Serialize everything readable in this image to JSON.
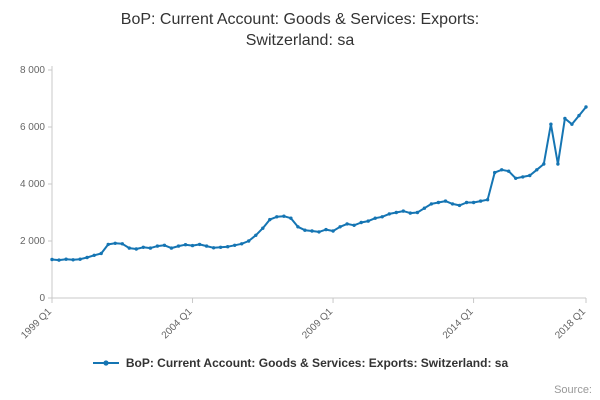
{
  "page": {
    "title_line1": "BoP: Current Account: Goods & Services: Exports:",
    "title_line2": "Switzerland: sa",
    "source_label": "Source:"
  },
  "chart_data": {
    "type": "line",
    "title": "BoP: Current Account: Goods & Services: Exports: Switzerland: sa",
    "series": [
      {
        "name": "BoP: Current Account: Goods & Services: Exports: Switzerland: sa",
        "values": [
          1350,
          1330,
          1360,
          1340,
          1360,
          1420,
          1500,
          1560,
          1880,
          1920,
          1900,
          1750,
          1720,
          1780,
          1750,
          1820,
          1850,
          1750,
          1820,
          1870,
          1840,
          1880,
          1820,
          1760,
          1780,
          1800,
          1850,
          1900,
          2000,
          2200,
          2450,
          2750,
          2850,
          2870,
          2800,
          2500,
          2380,
          2350,
          2320,
          2400,
          2350,
          2500,
          2600,
          2550,
          2650,
          2700,
          2800,
          2850,
          2950,
          3000,
          3050,
          2980,
          3000,
          3150,
          3300,
          3350,
          3400,
          3300,
          3250,
          3350,
          3350,
          3400,
          3450,
          4400,
          4500,
          4450,
          4200,
          4250,
          4300,
          4500,
          4700,
          6100,
          4700,
          6300,
          6100,
          6400,
          6700
        ]
      }
    ],
    "x_start": "1999 Q1",
    "x_end": "2018 Q1",
    "x_frequency": "quarterly",
    "x_tick_labels": [
      "1999 Q1",
      "2004 Q1",
      "2009 Q1",
      "2014 Q1",
      "2018 Q1"
    ],
    "y_tick_labels": [
      "0",
      "2 000",
      "4 000",
      "6 000",
      "8 000"
    ],
    "y_tick_values": [
      0,
      2000,
      4000,
      6000,
      8000
    ],
    "ylim": [
      0,
      8000
    ],
    "line_color": "#1575b3",
    "axis_color": "#c8c8c8",
    "legend_position": "bottom",
    "grid": false
  }
}
